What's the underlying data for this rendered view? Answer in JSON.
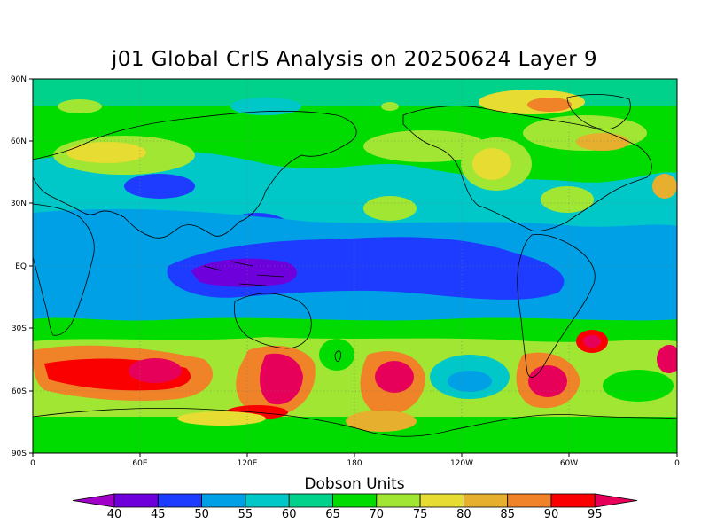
{
  "title": "j01 Global CrIS Analysis on 20250624 Layer 9",
  "colorbar": {
    "title": "Dobson Units",
    "labels": [
      "40",
      "45",
      "50",
      "55",
      "60",
      "65",
      "70",
      "75",
      "80",
      "85",
      "90",
      "95"
    ],
    "colors": [
      "#a000c8",
      "#6e00dc",
      "#1e3cff",
      "#00a0e6",
      "#00c8c8",
      "#00d28c",
      "#00dc00",
      "#a0e632",
      "#e6dc32",
      "#e6af2d",
      "#f08228",
      "#fa0000",
      "#e6005a"
    ]
  },
  "axes": {
    "lat_labels": [
      "90N",
      "60N",
      "30N",
      "EQ",
      "30S",
      "60S",
      "90S"
    ],
    "lon_labels": [
      "0",
      "60E",
      "120E",
      "180",
      "120W",
      "60W",
      "0"
    ]
  },
  "chart_data": {
    "type": "heatmap",
    "title": "j01 Global CrIS Analysis on 20250624 Layer 9",
    "colorbar_label": "Dobson Units",
    "levels": [
      40,
      45,
      50,
      55,
      60,
      65,
      70,
      75,
      80,
      85,
      90,
      95
    ],
    "xlim": [
      0,
      360
    ],
    "ylim": [
      -90,
      90
    ],
    "x_ticks": [
      "0",
      "60E",
      "120E",
      "180",
      "120W",
      "60W",
      "0"
    ],
    "y_ticks": [
      "90N",
      "60N",
      "30N",
      "EQ",
      "30S",
      "60S",
      "90S"
    ],
    "grid": true,
    "regions": [
      {
        "name": "tropical minimum Indonesia",
        "value": 43
      },
      {
        "name": "tropical belt",
        "value": 48
      },
      {
        "name": "southern mid-latitude maxima",
        "value": 95
      },
      {
        "name": "arctic",
        "value": 68
      },
      {
        "name": "antarctic",
        "value": 70
      }
    ]
  }
}
